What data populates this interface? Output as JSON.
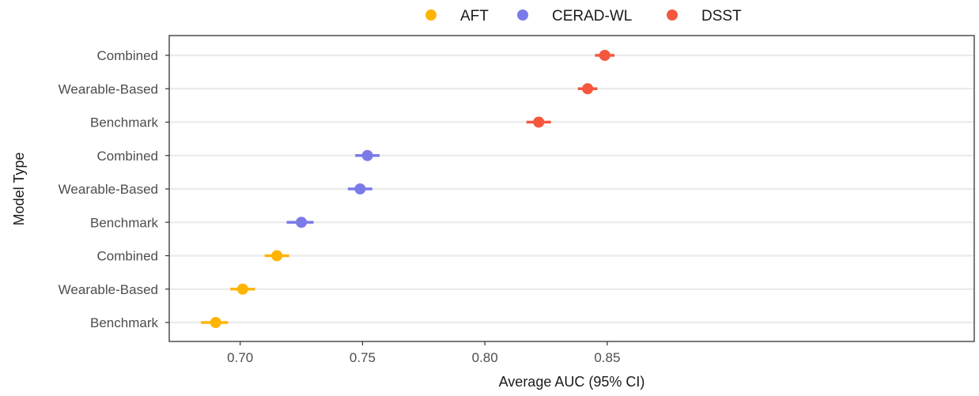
{
  "chart_data": {
    "type": "scatter",
    "subtype": "dot-and-whisker",
    "xlabel": "Average AUC (95% CI)",
    "ylabel": "Model Type",
    "xlim": [
      0.671,
      1.0
    ],
    "x_ticks": [
      "0.70",
      "0.75",
      "0.80",
      "0.85"
    ],
    "x_tick_values": [
      0.7,
      0.75,
      0.8,
      0.85
    ],
    "grid": "horizontal",
    "legend_position": "top",
    "legend": [
      {
        "name": "AFT",
        "color": "#FFB400"
      },
      {
        "name": "CERAD-WL",
        "color": "#7B7BE8"
      },
      {
        "name": "DSST",
        "color": "#F4573E"
      }
    ],
    "rows": [
      {
        "label": "Combined",
        "series": "DSST",
        "value": 0.849,
        "ci_low": 0.845,
        "ci_high": 0.853
      },
      {
        "label": "Wearable-Based",
        "series": "DSST",
        "value": 0.842,
        "ci_low": 0.838,
        "ci_high": 0.846
      },
      {
        "label": "Benchmark",
        "series": "DSST",
        "value": 0.822,
        "ci_low": 0.817,
        "ci_high": 0.827
      },
      {
        "label": "Combined",
        "series": "CERAD-WL",
        "value": 0.752,
        "ci_low": 0.747,
        "ci_high": 0.757
      },
      {
        "label": "Wearable-Based",
        "series": "CERAD-WL",
        "value": 0.749,
        "ci_low": 0.744,
        "ci_high": 0.754
      },
      {
        "label": "Benchmark",
        "series": "CERAD-WL",
        "value": 0.725,
        "ci_low": 0.719,
        "ci_high": 0.73
      },
      {
        "label": "Combined",
        "series": "AFT",
        "value": 0.715,
        "ci_low": 0.71,
        "ci_high": 0.72
      },
      {
        "label": "Wearable-Based",
        "series": "AFT",
        "value": 0.701,
        "ci_low": 0.696,
        "ci_high": 0.706
      },
      {
        "label": "Benchmark",
        "series": "AFT",
        "value": 0.69,
        "ci_low": 0.684,
        "ci_high": 0.695
      }
    ]
  }
}
